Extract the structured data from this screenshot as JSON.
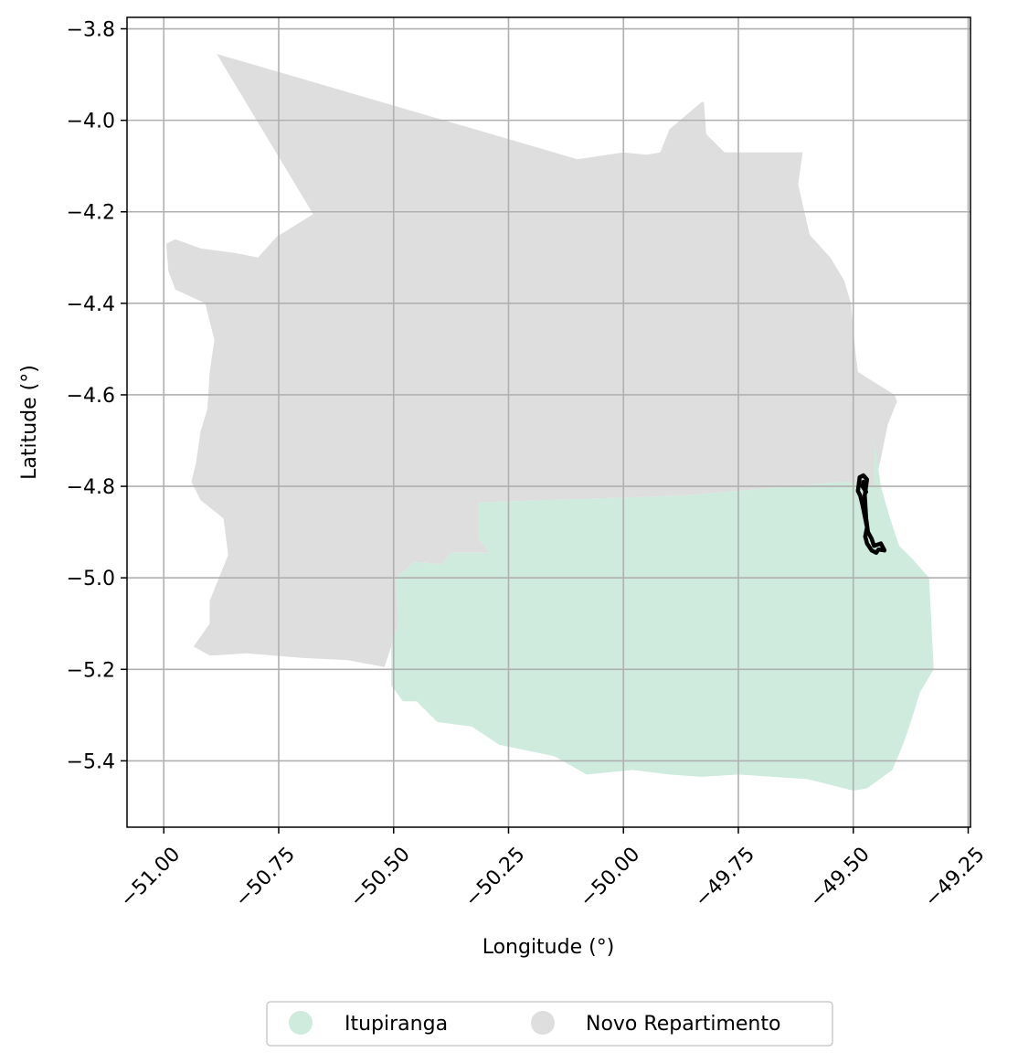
{
  "chart_data": {
    "type": "map",
    "xlabel": "Longitude (°)",
    "ylabel": "Latitude (°)",
    "xlim": [
      -51.08,
      -49.245
    ],
    "ylim": [
      -5.545,
      -3.775
    ],
    "grid": true,
    "legend_position": "bottom-center",
    "x_ticks": [
      {
        "value": -51.0,
        "label": "−51.00"
      },
      {
        "value": -50.75,
        "label": "−50.75"
      },
      {
        "value": -50.5,
        "label": "−50.50"
      },
      {
        "value": -50.25,
        "label": "−50.25"
      },
      {
        "value": -50.0,
        "label": "−50.00"
      },
      {
        "value": -49.75,
        "label": "−49.75"
      },
      {
        "value": -49.5,
        "label": "−49.50"
      },
      {
        "value": -49.25,
        "label": "−49.25"
      }
    ],
    "y_ticks": [
      {
        "value": -3.8,
        "label": "−3.8"
      },
      {
        "value": -4.0,
        "label": "−4.0"
      },
      {
        "value": -4.2,
        "label": "−4.2"
      },
      {
        "value": -4.4,
        "label": "−4.4"
      },
      {
        "value": -4.6,
        "label": "−4.6"
      },
      {
        "value": -4.8,
        "label": "−4.8"
      },
      {
        "value": -5.0,
        "label": "−5.0"
      },
      {
        "value": -5.2,
        "label": "−5.2"
      },
      {
        "value": -5.4,
        "label": "−5.4"
      }
    ],
    "regions": [
      {
        "name": "Novo Repartimento",
        "color": "#dedede",
        "polygon": [
          [
            -50.885,
            -3.855
          ],
          [
            -50.675,
            -4.205
          ],
          [
            -50.755,
            -4.255
          ],
          [
            -50.795,
            -4.3
          ],
          [
            -50.845,
            -4.29
          ],
          [
            -50.92,
            -4.28
          ],
          [
            -50.975,
            -4.26
          ],
          [
            -50.995,
            -4.27
          ],
          [
            -50.99,
            -4.33
          ],
          [
            -50.975,
            -4.37
          ],
          [
            -50.91,
            -4.4
          ],
          [
            -50.89,
            -4.48
          ],
          [
            -50.9,
            -4.55
          ],
          [
            -50.905,
            -4.63
          ],
          [
            -50.92,
            -4.68
          ],
          [
            -50.93,
            -4.75
          ],
          [
            -50.94,
            -4.79
          ],
          [
            -50.92,
            -4.83
          ],
          [
            -50.87,
            -4.87
          ],
          [
            -50.86,
            -4.95
          ],
          [
            -50.88,
            -5.0
          ],
          [
            -50.9,
            -5.05
          ],
          [
            -50.9,
            -5.1
          ],
          [
            -50.935,
            -5.15
          ],
          [
            -50.9,
            -5.17
          ],
          [
            -50.82,
            -5.165
          ],
          [
            -50.7,
            -5.175
          ],
          [
            -50.6,
            -5.18
          ],
          [
            -50.52,
            -5.195
          ],
          [
            -50.505,
            -5.15
          ],
          [
            -50.49,
            -5.1
          ],
          [
            -50.495,
            -5.0
          ],
          [
            -50.455,
            -4.965
          ],
          [
            -50.395,
            -4.97
          ],
          [
            -50.375,
            -4.945
          ],
          [
            -50.29,
            -4.945
          ],
          [
            -50.315,
            -4.915
          ],
          [
            -50.315,
            -4.835
          ],
          [
            -49.87,
            -4.82
          ],
          [
            -49.52,
            -4.79
          ],
          [
            -49.455,
            -4.8
          ],
          [
            -49.44,
            -4.74
          ],
          [
            -49.425,
            -4.665
          ],
          [
            -49.405,
            -4.615
          ],
          [
            -49.41,
            -4.6
          ],
          [
            -49.49,
            -4.55
          ],
          [
            -49.495,
            -4.51
          ],
          [
            -49.505,
            -4.4
          ],
          [
            -49.52,
            -4.35
          ],
          [
            -49.55,
            -4.3
          ],
          [
            -49.595,
            -4.25
          ],
          [
            -49.62,
            -4.14
          ],
          [
            -49.61,
            -4.07
          ],
          [
            -49.78,
            -4.07
          ],
          [
            -49.79,
            -4.06
          ],
          [
            -49.82,
            -4.03
          ],
          [
            -49.825,
            -3.96
          ],
          [
            -49.83,
            -3.96
          ],
          [
            -49.9,
            -4.02
          ],
          [
            -49.92,
            -4.07
          ],
          [
            -49.95,
            -4.075
          ],
          [
            -50.0,
            -4.07
          ],
          [
            -50.1,
            -4.085
          ],
          [
            -50.885,
            -3.855
          ]
        ]
      },
      {
        "name": "Itupiranga",
        "color": "#ceebdd",
        "polygon": [
          [
            -50.315,
            -4.835
          ],
          [
            -50.315,
            -4.915
          ],
          [
            -50.29,
            -4.945
          ],
          [
            -50.375,
            -4.945
          ],
          [
            -50.395,
            -4.97
          ],
          [
            -50.455,
            -4.965
          ],
          [
            -50.495,
            -5.0
          ],
          [
            -50.49,
            -5.1
          ],
          [
            -50.505,
            -5.15
          ],
          [
            -50.505,
            -5.235
          ],
          [
            -50.48,
            -5.27
          ],
          [
            -50.45,
            -5.27
          ],
          [
            -50.405,
            -5.315
          ],
          [
            -50.33,
            -5.325
          ],
          [
            -50.27,
            -5.365
          ],
          [
            -50.15,
            -5.39
          ],
          [
            -50.08,
            -5.43
          ],
          [
            -49.98,
            -5.42
          ],
          [
            -49.9,
            -5.43
          ],
          [
            -49.83,
            -5.435
          ],
          [
            -49.75,
            -5.43
          ],
          [
            -49.6,
            -5.44
          ],
          [
            -49.5,
            -5.465
          ],
          [
            -49.47,
            -5.46
          ],
          [
            -49.415,
            -5.42
          ],
          [
            -49.39,
            -5.36
          ],
          [
            -49.37,
            -5.3
          ],
          [
            -49.355,
            -5.25
          ],
          [
            -49.325,
            -5.2
          ],
          [
            -49.33,
            -5.1
          ],
          [
            -49.335,
            -5.0
          ],
          [
            -49.37,
            -4.96
          ],
          [
            -49.4,
            -4.93
          ],
          [
            -49.42,
            -4.87
          ],
          [
            -49.44,
            -4.8
          ],
          [
            -49.455,
            -4.69
          ],
          [
            -49.455,
            -4.8
          ],
          [
            -49.52,
            -4.79
          ],
          [
            -49.87,
            -4.82
          ],
          [
            -50.315,
            -4.835
          ]
        ]
      }
    ],
    "outline_paths": [
      [
        [
          -49.486,
          -4.78
        ],
        [
          -49.478,
          -4.776
        ],
        [
          -49.47,
          -4.785
        ],
        [
          -49.475,
          -4.82
        ],
        [
          -49.472,
          -4.87
        ],
        [
          -49.468,
          -4.9
        ],
        [
          -49.46,
          -4.915
        ],
        [
          -49.455,
          -4.93
        ],
        [
          -49.44,
          -4.925
        ],
        [
          -49.432,
          -4.94
        ],
        [
          -49.445,
          -4.938
        ],
        [
          -49.45,
          -4.945
        ],
        [
          -49.46,
          -4.94
        ],
        [
          -49.47,
          -4.925
        ],
        [
          -49.474,
          -4.91
        ],
        [
          -49.47,
          -4.89
        ],
        [
          -49.476,
          -4.86
        ],
        [
          -49.48,
          -4.84
        ],
        [
          -49.485,
          -4.82
        ],
        [
          -49.49,
          -4.81
        ],
        [
          -49.488,
          -4.795
        ],
        [
          -49.486,
          -4.78
        ]
      ],
      [
        [
          -49.478,
          -4.79
        ],
        [
          -49.48,
          -4.8
        ],
        [
          -49.472,
          -4.812
        ]
      ]
    ]
  },
  "legend": {
    "items": [
      {
        "label": "Itupiranga",
        "color": "#ceebdd"
      },
      {
        "label": "Novo Repartimento",
        "color": "#dedede"
      }
    ]
  }
}
